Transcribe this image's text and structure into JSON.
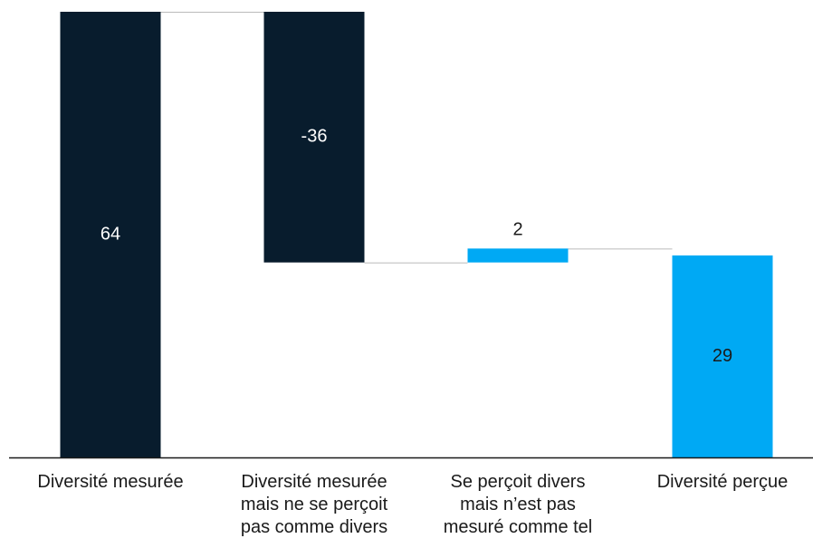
{
  "chart_data": {
    "type": "bar",
    "subtype": "waterfall",
    "title": "",
    "xlabel": "",
    "ylabel": "",
    "ylim": [
      0,
      64
    ],
    "grid": false,
    "categories": [
      [
        "Diversité mesurée"
      ],
      [
        "Diversité mesurée",
        "mais ne se perçoit",
        "pas comme divers"
      ],
      [
        "Se perçoit divers",
        "mais n’est pas",
        "mesuré comme tel"
      ],
      [
        "Diversité perçue"
      ]
    ],
    "values": [
      64,
      -36,
      2,
      29
    ],
    "value_labels": [
      "64",
      "-36",
      "2",
      "29"
    ],
    "bar_kinds": [
      "total",
      "delta",
      "delta",
      "total"
    ],
    "colors": {
      "dark": "#081c2d",
      "accent": "#00a9f4",
      "connector": "#bbbbbb",
      "axis": "#1a1a1a",
      "label_on_dark": "#ffffff",
      "label_default": "#1a1a1a"
    },
    "bar_colors": [
      "dark",
      "dark",
      "accent",
      "accent"
    ]
  }
}
